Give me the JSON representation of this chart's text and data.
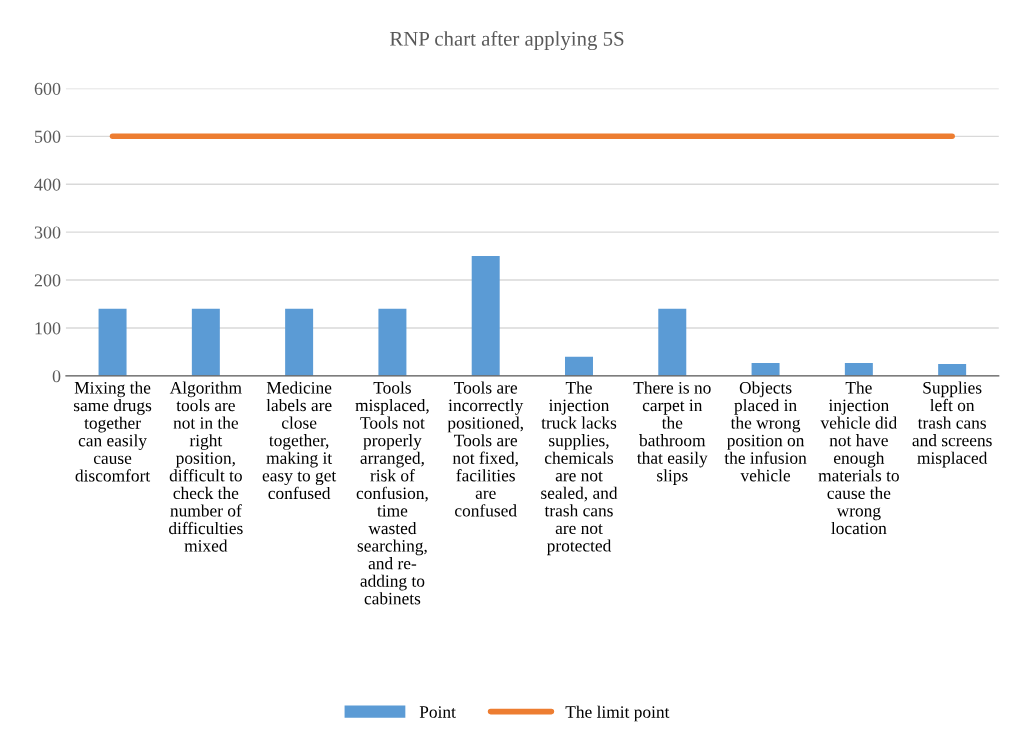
{
  "chart_data": {
    "type": "bar",
    "title": "RNP chart after applying 5S",
    "categories": [
      "Mixing the\nsame drugs\ntogether\ncan easily\ncause\ndiscomfort",
      "Algorithm\ntools are\nnot in the\nright\nposition,\ndifficult to\ncheck the\nnumber of\ndifficulties\nmixed",
      "Medicine\nlabels are\nclose\ntogether,\nmaking it\neasy to get\nconfused",
      "Tools\nmisplaced,\nTools not\nproperly\narranged,\nrisk of\nconfusion,\ntime\nwasted\nsearching,\nand re-\nadding to\ncabinets",
      "Tools are\nincorrectly\npositioned,\nTools are\nnot fixed,\nfacilities\nare\nconfused",
      "The\ninjection\ntruck lacks\nsupplies,\nchemicals\nare not\nsealed, and\ntrash cans\nare not\nprotected",
      "There is no\ncarpet in\nthe\nbathroom\nthat easily\nslips",
      "Objects\nplaced in\nthe wrong\nposition on\nthe infusion\nvehicle",
      "The\ninjection\nvehicle did\nnot have\nenough\nmaterials to\ncause the\nwrong\nlocation",
      "Supplies\nleft on\ntrash cans\nand screens\nmisplaced"
    ],
    "series": [
      {
        "name": "Point",
        "color": "#5b9bd5",
        "values": [
          140,
          140,
          140,
          140,
          250,
          40,
          140,
          27,
          27,
          25
        ]
      },
      {
        "name": "The limit point",
        "type": "line",
        "color": "#ed7d31",
        "values": [
          500,
          500,
          500,
          500,
          500,
          500,
          500,
          500,
          500,
          500
        ]
      }
    ],
    "ylim": [
      0,
      600
    ],
    "yticks": [
      0,
      100,
      200,
      300,
      400,
      500,
      600
    ],
    "grid": "y",
    "legend": "bottom"
  }
}
